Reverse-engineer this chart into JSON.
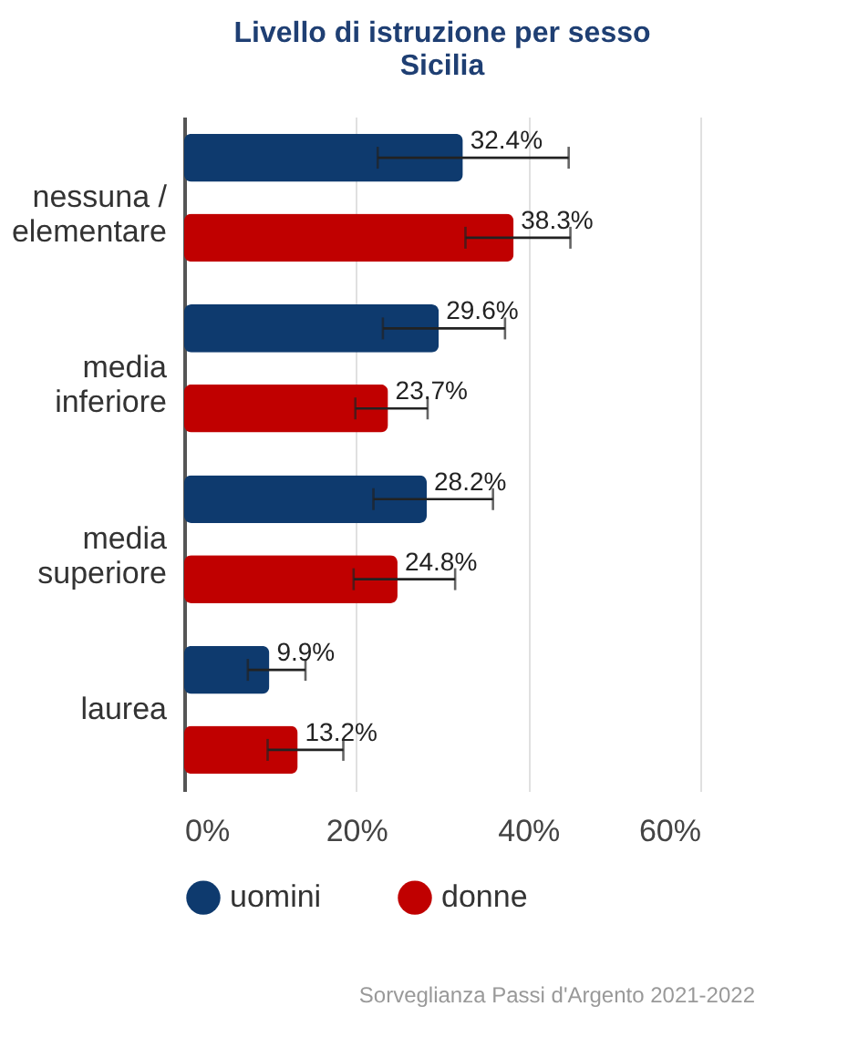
{
  "chart_data": {
    "type": "bar",
    "orientation": "horizontal",
    "title": "Livello di istruzione per sesso",
    "subtitle": "Sicilia",
    "categories": [
      "nessuna /\nelementare",
      "media\ninferiore",
      "media\nsuperiore",
      "laurea"
    ],
    "series": [
      {
        "name": "uomini",
        "color": "#0e3a6e",
        "values": [
          32.4,
          29.6,
          28.2,
          9.9
        ],
        "errors": [
          [
            22.5,
            44.7
          ],
          [
            23.1,
            37.3
          ],
          [
            22.0,
            35.9
          ],
          [
            7.4,
            14.1
          ]
        ],
        "value_labels": [
          "32.4%",
          "29.6%",
          "28.2%",
          "9.9%"
        ]
      },
      {
        "name": "donne",
        "color": "#c00000",
        "values": [
          38.3,
          23.7,
          24.8,
          13.2
        ],
        "errors": [
          [
            32.7,
            44.9
          ],
          [
            19.9,
            28.3
          ],
          [
            19.7,
            31.5
          ],
          [
            9.7,
            18.5
          ]
        ],
        "value_labels": [
          "38.3%",
          "23.7%",
          "24.8%",
          "13.2%"
        ]
      }
    ],
    "xlim": [
      0,
      60
    ],
    "xticks": [
      {
        "value": 0,
        "label": "0%"
      },
      {
        "value": 20,
        "label": "20%"
      },
      {
        "value": 40,
        "label": "40%"
      },
      {
        "value": 60,
        "label": "60%"
      }
    ],
    "grid": "x",
    "legend": "bottom",
    "annotations": [
      "Sorveglianza Passi d'Argento 2021-2022"
    ]
  }
}
